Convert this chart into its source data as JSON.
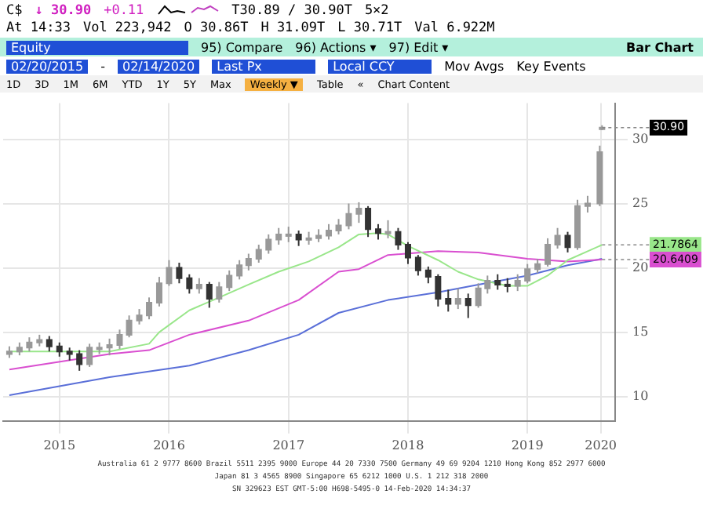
{
  "chart_data": {
    "type": "candlestick",
    "title": "Bar Chart",
    "xlim": [
      "2015-02-10",
      "2020-03-25"
    ],
    "ylim": [
      8.1,
      32.8
    ],
    "xticks": [
      {
        "value": "2015-08-01",
        "label": "2015"
      },
      {
        "value": "2016-07-01",
        "label": "2016"
      },
      {
        "value": "2017-07-01",
        "label": "2017"
      },
      {
        "value": "2018-07-01",
        "label": "2018"
      },
      {
        "value": "2019-07-01",
        "label": "2019"
      },
      {
        "value": "2020-02-10",
        "label": "2020"
      }
    ],
    "yticks": [
      10,
      15,
      20,
      25,
      30
    ],
    "grid": true,
    "legend": false,
    "series": [
      {
        "colors": [
          "#999999",
          "#999999",
          "#999999",
          "#999999",
          "#333333",
          "#333333",
          "#333333",
          "#333333",
          "#999999",
          "#999999",
          "#999999",
          "#999999",
          "#999999",
          "#999999",
          "#999999",
          "#999999",
          "#999999",
          "#333333",
          "#333333",
          "#999999",
          "#333333",
          "#999999",
          "#999999",
          "#999999",
          "#999999",
          "#999999",
          "#999999",
          "#999999",
          "#999999",
          "#333333",
          "#999999",
          "#999999",
          "#999999",
          "#999999",
          "#999999",
          "#999999",
          "#333333",
          "#333333",
          "#999999",
          "#333333",
          "#333333",
          "#333333",
          "#333333",
          "#333333",
          "#333333",
          "#999999",
          "#333333",
          "#999999",
          "#999999",
          "#333333",
          "#333333",
          "#999999",
          "#999999",
          "#999999",
          "#999999",
          "#999999",
          "#333333",
          "#999999",
          "#999999",
          "#999999",
          "#999999"
        ],
        "x": [
          "2015-03",
          "2015-04",
          "2015-05",
          "2015-06",
          "2015-07",
          "2015-08",
          "2015-09",
          "2015-10",
          "2015-11",
          "2015-12",
          "2016-01",
          "2016-02",
          "2016-03",
          "2016-04",
          "2016-05",
          "2016-06",
          "2016-07",
          "2016-08",
          "2016-09",
          "2016-10",
          "2016-11",
          "2016-12",
          "2017-01",
          "2017-02",
          "2017-03",
          "2017-04",
          "2017-05",
          "2017-06",
          "2017-07",
          "2017-08",
          "2017-09",
          "2017-10",
          "2017-11",
          "2017-12",
          "2018-01",
          "2018-02",
          "2018-03",
          "2018-04",
          "2018-05",
          "2018-06",
          "2018-07",
          "2018-08",
          "2018-09",
          "2018-10",
          "2018-11",
          "2018-12",
          "2019-01",
          "2019-02",
          "2019-03",
          "2019-04",
          "2019-05",
          "2019-06",
          "2019-07",
          "2019-08",
          "2019-09",
          "2019-10",
          "2019-11",
          "2019-12",
          "2020-01",
          "2020-02-07",
          "2020-02-14"
        ],
        "ohlc": [
          [
            13.3,
            13.9,
            13.0,
            13.5
          ],
          [
            13.5,
            14.2,
            13.2,
            13.8
          ],
          [
            13.8,
            14.6,
            13.5,
            14.2
          ],
          [
            14.2,
            14.8,
            13.9,
            14.4
          ],
          [
            14.4,
            14.7,
            13.5,
            13.9
          ],
          [
            13.9,
            14.2,
            13.1,
            13.5
          ],
          [
            13.5,
            13.8,
            12.8,
            13.3
          ],
          [
            13.3,
            13.6,
            12.0,
            12.5
          ],
          [
            12.5,
            14.1,
            12.3,
            13.8
          ],
          [
            13.8,
            14.2,
            13.3,
            13.8
          ],
          [
            13.8,
            14.5,
            13.2,
            14.0
          ],
          [
            14.0,
            15.2,
            13.7,
            14.8
          ],
          [
            14.8,
            16.3,
            14.6,
            15.9
          ],
          [
            15.9,
            16.8,
            15.6,
            16.3
          ],
          [
            16.3,
            17.7,
            16.0,
            17.3
          ],
          [
            17.3,
            19.3,
            17.0,
            18.8
          ],
          [
            18.8,
            20.6,
            18.6,
            20.0
          ],
          [
            20.0,
            20.4,
            18.8,
            19.2
          ],
          [
            19.2,
            19.5,
            18.0,
            18.4
          ],
          [
            18.4,
            19.2,
            18.0,
            18.7
          ],
          [
            18.7,
            18.9,
            16.9,
            17.6
          ],
          [
            17.6,
            18.9,
            17.3,
            18.5
          ],
          [
            18.5,
            19.8,
            18.2,
            19.4
          ],
          [
            19.4,
            20.6,
            19.1,
            20.2
          ],
          [
            20.2,
            21.1,
            19.8,
            20.7
          ],
          [
            20.7,
            21.8,
            20.4,
            21.4
          ],
          [
            21.4,
            22.6,
            21.1,
            22.2
          ],
          [
            22.2,
            23.1,
            21.8,
            22.6
          ],
          [
            22.6,
            23.2,
            22.0,
            22.6
          ],
          [
            22.6,
            22.9,
            21.7,
            22.2
          ],
          [
            22.2,
            22.8,
            21.8,
            22.3
          ],
          [
            22.3,
            23.0,
            22.0,
            22.5
          ],
          [
            22.5,
            23.4,
            22.2,
            22.9
          ],
          [
            22.9,
            23.8,
            22.6,
            23.3
          ],
          [
            23.3,
            25.0,
            23.0,
            24.2
          ],
          [
            24.2,
            25.1,
            23.5,
            24.6
          ],
          [
            24.6,
            24.8,
            22.4,
            23.0
          ],
          [
            23.0,
            23.4,
            22.2,
            22.7
          ],
          [
            22.7,
            23.7,
            22.3,
            22.8
          ],
          [
            22.8,
            23.1,
            21.4,
            21.8
          ],
          [
            21.8,
            22.0,
            20.3,
            20.8
          ],
          [
            20.8,
            21.0,
            19.4,
            19.8
          ],
          [
            19.8,
            20.1,
            18.8,
            19.3
          ],
          [
            19.3,
            19.5,
            17.0,
            17.6
          ],
          [
            17.6,
            18.3,
            16.6,
            17.2
          ],
          [
            17.2,
            18.4,
            16.8,
            17.6
          ],
          [
            17.6,
            18.0,
            16.1,
            17.1
          ],
          [
            17.1,
            18.8,
            16.9,
            18.4
          ],
          [
            18.4,
            19.4,
            18.0,
            19.0
          ],
          [
            19.0,
            19.5,
            18.3,
            18.7
          ],
          [
            18.7,
            19.2,
            18.1,
            18.6
          ],
          [
            18.6,
            19.5,
            18.2,
            19.0
          ],
          [
            19.0,
            20.3,
            18.8,
            19.9
          ],
          [
            19.9,
            20.7,
            19.6,
            20.3
          ],
          [
            20.3,
            22.3,
            20.1,
            21.8
          ],
          [
            21.8,
            23.1,
            21.5,
            22.5
          ],
          [
            22.5,
            22.8,
            21.2,
            21.6
          ],
          [
            21.6,
            25.3,
            21.4,
            24.8
          ],
          [
            24.8,
            25.6,
            24.3,
            25.0
          ],
          [
            25.0,
            29.5,
            24.8,
            29.0
          ],
          [
            30.86,
            31.09,
            30.71,
            30.9
          ]
        ]
      },
      {
        "type": "line",
        "color": "#99e68a",
        "x": [
          "2015-03",
          "2016-01",
          "2016-05",
          "2016-06",
          "2016-09",
          "2016-12",
          "2017-03",
          "2017-06",
          "2017-09",
          "2017-12",
          "2018-02",
          "2018-04",
          "2018-05",
          "2018-07",
          "2018-10",
          "2018-12",
          "2019-02",
          "2019-05",
          "2019-07",
          "2019-09",
          "2019-11",
          "2020-02-14"
        ],
        "values": [
          13.5,
          13.5,
          14.1,
          15.0,
          16.7,
          17.7,
          18.7,
          19.7,
          20.5,
          21.6,
          22.6,
          22.7,
          22.6,
          21.7,
          20.6,
          19.7,
          19.1,
          18.6,
          18.6,
          19.4,
          20.6,
          21.7864
        ]
      },
      {
        "type": "line",
        "color": "#d94fd0",
        "x": [
          "2015-03",
          "2016-01",
          "2016-05",
          "2016-09",
          "2017-03",
          "2017-08",
          "2017-12",
          "2018-02",
          "2018-05",
          "2018-10",
          "2019-02",
          "2019-07",
          "2019-11",
          "2020-02-14"
        ],
        "values": [
          12.1,
          13.3,
          13.6,
          14.8,
          15.9,
          17.5,
          19.7,
          19.9,
          21.0,
          21.3,
          21.2,
          20.7,
          20.5,
          20.6409
        ]
      },
      {
        "type": "line",
        "color": "#5a6fd8",
        "x": [
          "2015-03",
          "2016-01",
          "2016-09",
          "2017-03",
          "2017-08",
          "2017-12",
          "2018-05",
          "2018-10",
          "2019-02",
          "2019-07",
          "2019-11",
          "2020-02-14"
        ],
        "values": [
          10.1,
          11.5,
          12.4,
          13.6,
          14.8,
          16.5,
          17.5,
          18.1,
          18.7,
          19.4,
          20.2,
          20.7
        ]
      }
    ],
    "annotations": [
      "C$",
      "↓ 30.90",
      "+0.11",
      "T30.89 / 30.90T",
      "5×2",
      "At 14:33",
      "Vol 223,942",
      "O 30.86T",
      "H 31.09T",
      "L 30.71T",
      "Val 6.922M",
      "Equity",
      "95) Compare",
      "96) Actions ▾",
      "97) Edit ▾",
      "02/20/2015",
      "-",
      "02/14/2020",
      "Last Px",
      "Local CCY",
      "Mov Avgs",
      "Key Events",
      "1D",
      "3D",
      "1M",
      "6M",
      "YTD",
      "1Y",
      "5Y",
      "Max",
      "Weekly ▼",
      "Table",
      "«",
      "Chart Content",
      "Australia 61 2 9777 8600 Brazil 5511 2395 9000 Europe 44 20 7330 7500 Germany 49 69 9204 1210 Hong Kong 852 2977 6000",
      "Japan 81 3 4565 8900 Singapore 65 6212 1000 U.S. 1 212 318 2000",
      "SN 329623 EST GMT-5:00 H698-5495-0 14-Feb-2020 14:34:37",
      {
        "text": "30.90",
        "x": "2020-02-14",
        "y": 30.9
      },
      {
        "text": "21.7864",
        "x": "2020-02-14",
        "y": 21.7864
      },
      {
        "text": "20.6409",
        "x": "2020-02-14",
        "y": 20.6409
      }
    ]
  }
}
